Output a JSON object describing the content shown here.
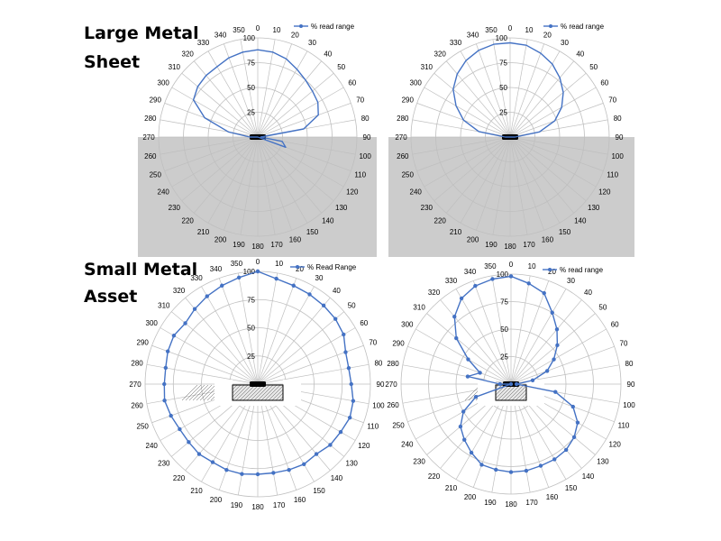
{
  "labels": {
    "large_line1": "Large Metal",
    "large_line2": "Sheet",
    "small_line1": "Small Metal",
    "small_line2": "Asset"
  },
  "colors": {
    "series": "#4472c4",
    "grid": "#bfbfbf",
    "shade": "#cccccc",
    "tag": "#000000"
  },
  "chart_data": [
    {
      "type": "polar-line",
      "legend": "% read range",
      "legend_position": "top-right",
      "radial_ticks": [
        0,
        25,
        50,
        75,
        100
      ],
      "angle_ticks": [
        0,
        10,
        20,
        30,
        40,
        50,
        60,
        70,
        80,
        90,
        100,
        110,
        120,
        130,
        140,
        150,
        160,
        170,
        180,
        190,
        200,
        210,
        220,
        230,
        240,
        250,
        260,
        270,
        280,
        290,
        300,
        310,
        320,
        330,
        340,
        350
      ],
      "markers": false,
      "background": "metal-sheet-half",
      "points": [
        {
          "angle": 0,
          "value": 88
        },
        {
          "angle": 10,
          "value": 87
        },
        {
          "angle": 20,
          "value": 84
        },
        {
          "angle": 30,
          "value": 79
        },
        {
          "angle": 40,
          "value": 75
        },
        {
          "angle": 50,
          "value": 72
        },
        {
          "angle": 60,
          "value": 70
        },
        {
          "angle": 70,
          "value": 65
        },
        {
          "angle": 80,
          "value": 47
        },
        {
          "angle": 90,
          "value": 3
        },
        {
          "angle": 100,
          "value": 25
        },
        {
          "angle": 110,
          "value": 30
        },
        {
          "angle": 250,
          "value": 0
        },
        {
          "angle": 260,
          "value": 0
        },
        {
          "angle": 270,
          "value": 8
        },
        {
          "angle": 280,
          "value": 30
        },
        {
          "angle": 290,
          "value": 57
        },
        {
          "angle": 300,
          "value": 75
        },
        {
          "angle": 310,
          "value": 79
        },
        {
          "angle": 320,
          "value": 81
        },
        {
          "angle": 330,
          "value": 82
        },
        {
          "angle": 340,
          "value": 85
        },
        {
          "angle": 350,
          "value": 87
        },
        {
          "angle": 0,
          "value": 88
        }
      ]
    },
    {
      "type": "polar-line",
      "legend": "% read range",
      "legend_position": "top-right",
      "radial_ticks": [
        0,
        25,
        50,
        75,
        100
      ],
      "angle_ticks": [
        0,
        10,
        20,
        30,
        40,
        50,
        60,
        70,
        80,
        90,
        100,
        110,
        120,
        130,
        140,
        150,
        160,
        170,
        180,
        190,
        200,
        210,
        220,
        230,
        240,
        250,
        260,
        270,
        280,
        290,
        300,
        310,
        320,
        330,
        340,
        350
      ],
      "markers": false,
      "background": "metal-sheet-half",
      "points": [
        {
          "angle": 0,
          "value": 95
        },
        {
          "angle": 10,
          "value": 94
        },
        {
          "angle": 20,
          "value": 90
        },
        {
          "angle": 30,
          "value": 85
        },
        {
          "angle": 40,
          "value": 78
        },
        {
          "angle": 50,
          "value": 70
        },
        {
          "angle": 60,
          "value": 60
        },
        {
          "angle": 70,
          "value": 48
        },
        {
          "angle": 80,
          "value": 30
        },
        {
          "angle": 90,
          "value": 5
        },
        {
          "angle": 270,
          "value": 5
        },
        {
          "angle": 280,
          "value": 32
        },
        {
          "angle": 290,
          "value": 50
        },
        {
          "angle": 300,
          "value": 63
        },
        {
          "angle": 310,
          "value": 75
        },
        {
          "angle": 320,
          "value": 83
        },
        {
          "angle": 330,
          "value": 89
        },
        {
          "angle": 340,
          "value": 93
        },
        {
          "angle": 350,
          "value": 95
        },
        {
          "angle": 0,
          "value": 95
        }
      ]
    },
    {
      "type": "polar-line",
      "legend": "% Read Range",
      "legend_position": "top-right",
      "radial_ticks": [
        0,
        25,
        50,
        75,
        100
      ],
      "angle_ticks": [
        0,
        10,
        20,
        30,
        40,
        50,
        60,
        70,
        80,
        90,
        100,
        110,
        120,
        130,
        140,
        150,
        160,
        170,
        180,
        190,
        200,
        210,
        220,
        230,
        240,
        250,
        260,
        270,
        280,
        290,
        300,
        310,
        320,
        330,
        340,
        350
      ],
      "markers": true,
      "background": "small-asset-box",
      "points": [
        {
          "angle": 0,
          "value": 100
        },
        {
          "angle": 10,
          "value": 95
        },
        {
          "angle": 20,
          "value": 93
        },
        {
          "angle": 30,
          "value": 92
        },
        {
          "angle": 40,
          "value": 91
        },
        {
          "angle": 50,
          "value": 90
        },
        {
          "angle": 60,
          "value": 88
        },
        {
          "angle": 70,
          "value": 83
        },
        {
          "angle": 80,
          "value": 82
        },
        {
          "angle": 90,
          "value": 83
        },
        {
          "angle": 100,
          "value": 86
        },
        {
          "angle": 110,
          "value": 87
        },
        {
          "angle": 120,
          "value": 85
        },
        {
          "angle": 130,
          "value": 84
        },
        {
          "angle": 140,
          "value": 81
        },
        {
          "angle": 150,
          "value": 82
        },
        {
          "angle": 160,
          "value": 81
        },
        {
          "angle": 170,
          "value": 80
        },
        {
          "angle": 180,
          "value": 80
        },
        {
          "angle": 190,
          "value": 81
        },
        {
          "angle": 200,
          "value": 81
        },
        {
          "angle": 210,
          "value": 80
        },
        {
          "angle": 220,
          "value": 81
        },
        {
          "angle": 230,
          "value": 80
        },
        {
          "angle": 240,
          "value": 80
        },
        {
          "angle": 250,
          "value": 82
        },
        {
          "angle": 260,
          "value": 84
        },
        {
          "angle": 270,
          "value": 83
        },
        {
          "angle": 280,
          "value": 83
        },
        {
          "angle": 290,
          "value": 85
        },
        {
          "angle": 300,
          "value": 86
        },
        {
          "angle": 310,
          "value": 84
        },
        {
          "angle": 320,
          "value": 87
        },
        {
          "angle": 330,
          "value": 90
        },
        {
          "angle": 340,
          "value": 93
        },
        {
          "angle": 350,
          "value": 96
        },
        {
          "angle": 0,
          "value": 100
        }
      ]
    },
    {
      "type": "polar-line",
      "legend": "% read range",
      "legend_position": "top-right",
      "radial_ticks": [
        0,
        25,
        50,
        75,
        100
      ],
      "angle_ticks": [
        0,
        10,
        20,
        30,
        40,
        50,
        60,
        70,
        80,
        90,
        100,
        110,
        120,
        130,
        140,
        150,
        160,
        170,
        180,
        190,
        200,
        210,
        220,
        230,
        240,
        250,
        260,
        270,
        280,
        290,
        300,
        310,
        320,
        330,
        340,
        350
      ],
      "markers": true,
      "background": "small-asset-box",
      "points": [
        {
          "angle": 0,
          "value": 98
        },
        {
          "angle": 10,
          "value": 93
        },
        {
          "angle": 20,
          "value": 88
        },
        {
          "angle": 30,
          "value": 75
        },
        {
          "angle": 40,
          "value": 65
        },
        {
          "angle": 50,
          "value": 55
        },
        {
          "angle": 60,
          "value": 45
        },
        {
          "angle": 70,
          "value": 35
        },
        {
          "angle": 80,
          "value": 20
        },
        {
          "angle": 90,
          "value": 5
        },
        {
          "angle": 100,
          "value": 41
        },
        {
          "angle": 110,
          "value": 60
        },
        {
          "angle": 120,
          "value": 70
        },
        {
          "angle": 130,
          "value": 75
        },
        {
          "angle": 140,
          "value": 78
        },
        {
          "angle": 150,
          "value": 79
        },
        {
          "angle": 160,
          "value": 79
        },
        {
          "angle": 170,
          "value": 80
        },
        {
          "angle": 180,
          "value": 80
        },
        {
          "angle": 190,
          "value": 79
        },
        {
          "angle": 200,
          "value": 78
        },
        {
          "angle": 210,
          "value": 72
        },
        {
          "angle": 220,
          "value": 66
        },
        {
          "angle": 230,
          "value": 60
        },
        {
          "angle": 240,
          "value": 50
        },
        {
          "angle": 250,
          "value": 34
        },
        {
          "angle": 260,
          "value": 0
        },
        {
          "angle": 270,
          "value": 10
        },
        {
          "angle": 280,
          "value": 40
        },
        {
          "angle": 290,
          "value": 30
        },
        {
          "angle": 300,
          "value": 45
        },
        {
          "angle": 310,
          "value": 65
        },
        {
          "angle": 320,
          "value": 80
        },
        {
          "angle": 330,
          "value": 90
        },
        {
          "angle": 340,
          "value": 95
        },
        {
          "angle": 350,
          "value": 97
        },
        {
          "angle": 0,
          "value": 98
        }
      ]
    }
  ]
}
